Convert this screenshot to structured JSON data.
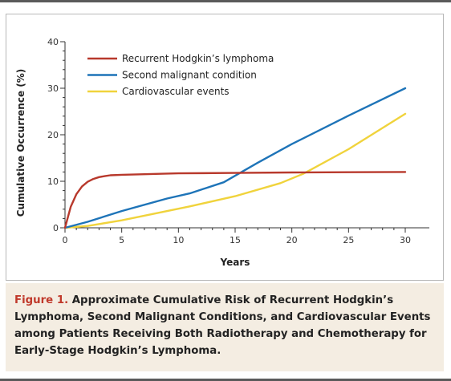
{
  "chart_data": {
    "type": "line",
    "xlabel": "Years",
    "ylabel": "Cumulative Occurrence (%)",
    "xlim": [
      0,
      30
    ],
    "ylim": [
      0,
      40
    ],
    "xticks": [
      0,
      5,
      10,
      15,
      20,
      25,
      30
    ],
    "yticks": [
      0,
      10,
      20,
      30,
      40
    ],
    "grid": false,
    "legend_position": "top-left",
    "series": [
      {
        "name": "Recurrent Hodgkin’s lymphoma",
        "color": "#b8392c",
        "points": [
          [
            0,
            0
          ],
          [
            0.5,
            4.5
          ],
          [
            1,
            7.2
          ],
          [
            1.5,
            8.9
          ],
          [
            2,
            9.9
          ],
          [
            2.5,
            10.5
          ],
          [
            3,
            10.9
          ],
          [
            3.5,
            11.1
          ],
          [
            4,
            11.3
          ],
          [
            5,
            11.4
          ],
          [
            10,
            11.7
          ],
          [
            15,
            11.8
          ],
          [
            20,
            11.9
          ],
          [
            25,
            11.95
          ],
          [
            30,
            12.0
          ]
        ]
      },
      {
        "name": "Second malignant condition",
        "color": "#1e74b8",
        "points": [
          [
            0,
            0
          ],
          [
            2,
            1.3
          ],
          [
            5,
            3.6
          ],
          [
            9,
            6.3
          ],
          [
            11,
            7.4
          ],
          [
            14,
            9.8
          ],
          [
            17,
            14.0
          ],
          [
            20,
            18.0
          ],
          [
            25,
            24.1
          ],
          [
            30,
            30.0
          ]
        ]
      },
      {
        "name": "Cardiovascular events",
        "color": "#f0d33c",
        "points": [
          [
            0,
            0
          ],
          [
            2,
            0.4
          ],
          [
            5,
            1.6
          ],
          [
            11,
            4.6
          ],
          [
            15,
            6.8
          ],
          [
            19,
            9.6
          ],
          [
            21,
            11.6
          ],
          [
            25,
            16.9
          ],
          [
            30,
            24.5
          ]
        ]
      }
    ]
  },
  "caption": {
    "label": "Figure 1.",
    "text": " Approximate Cumulative Risk of Recurrent Hodgkin’s Lymphoma, Second Malignant Conditions, and Cardiovascular Events among Patients Receiving Both Radiotherapy and Chemotherapy for Early-Stage Hodgkin’s Lymphoma."
  }
}
